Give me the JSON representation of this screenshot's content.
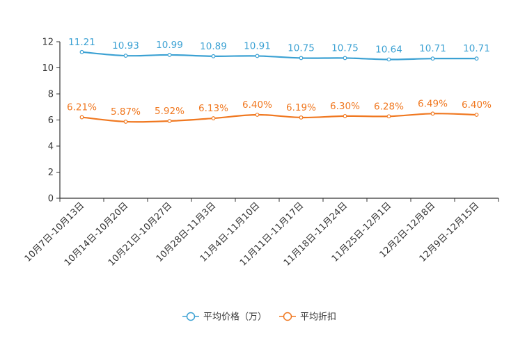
{
  "chart_data": {
    "type": "line",
    "title": "",
    "xlabel": "",
    "ylabel": "",
    "ylim": [
      0,
      12
    ],
    "yticks": [
      0,
      2,
      4,
      6,
      8,
      10,
      12
    ],
    "grid": false,
    "legend_position": "bottom-center",
    "categories": [
      "10月7日-10月13日",
      "10月14日-10月20日",
      "10月21日-10月27日",
      "10月28日-11月3日",
      "11月4日-11月10日",
      "11月11日-11月17日",
      "11月18日-11月24日",
      "11月25日-12月1日",
      "12月2日-12月8日",
      "12月9日-12月15日"
    ],
    "series": [
      {
        "name": "平均价格（万）",
        "color": "#3ba1d3",
        "values": [
          11.21,
          10.93,
          10.99,
          10.89,
          10.91,
          10.75,
          10.75,
          10.64,
          10.71,
          10.71
        ],
        "labels": [
          "11.21",
          "10.93",
          "10.99",
          "10.89",
          "10.91",
          "10.75",
          "10.75",
          "10.64",
          "10.71",
          "10.71"
        ]
      },
      {
        "name": "平均折扣",
        "color": "#f07820",
        "values": [
          6.21,
          5.87,
          5.92,
          6.13,
          6.4,
          6.19,
          6.3,
          6.28,
          6.49,
          6.4
        ],
        "labels": [
          "6.21%",
          "5.87%",
          "5.92%",
          "6.13%",
          "6.40%",
          "6.19%",
          "6.30%",
          "6.28%",
          "6.49%",
          "6.40%"
        ]
      }
    ]
  }
}
